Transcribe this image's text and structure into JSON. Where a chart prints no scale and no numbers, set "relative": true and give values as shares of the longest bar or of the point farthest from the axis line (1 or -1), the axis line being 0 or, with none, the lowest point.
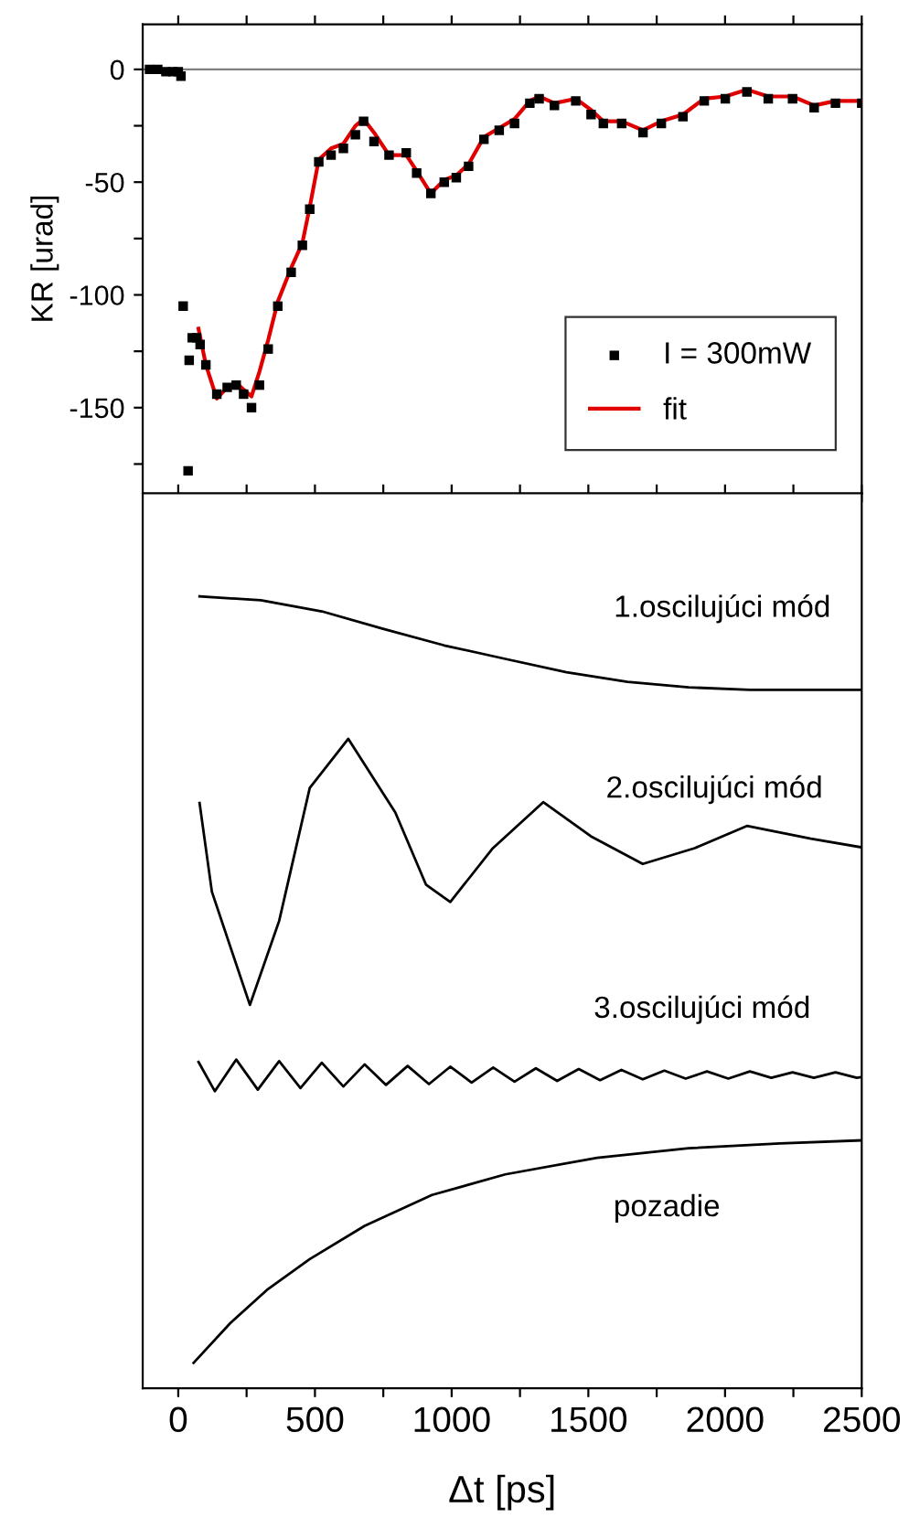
{
  "chart_data": [
    {
      "type": "scatter",
      "ylabel": "KR [urad]",
      "xlim": [
        -130,
        2500
      ],
      "ylim": [
        -188,
        20
      ],
      "xticks": [
        {
          "value": 0,
          "label": null
        },
        {
          "value": 250,
          "label": null
        },
        {
          "value": 500,
          "label": null
        },
        {
          "value": 750,
          "label": null
        },
        {
          "value": 1000,
          "label": null
        },
        {
          "value": 1250,
          "label": null
        },
        {
          "value": 1500,
          "label": null
        },
        {
          "value": 1750,
          "label": null
        },
        {
          "value": 2000,
          "label": null
        },
        {
          "value": 2250,
          "label": null
        },
        {
          "value": 2500,
          "label": null
        }
      ],
      "yticks": [
        {
          "value": -175,
          "label": null
        },
        -150,
        {
          "value": -125,
          "label": null
        },
        -100,
        {
          "value": -75,
          "label": null
        },
        -50,
        {
          "value": -25,
          "label": null
        },
        0
      ],
      "tick_labels": "y",
      "legend": "bottom right",
      "ref_lines": [
        {
          "axis": "y",
          "value": 0,
          "color": "#808080"
        }
      ],
      "series": [
        {
          "name": "I = 300mW",
          "type": "scatter",
          "marker": "square",
          "color": "#000000",
          "x": [
            -105,
            -75,
            -45,
            -20,
            0,
            10,
            18,
            36,
            40,
            51,
            67,
            80,
            101,
            141,
            179,
            212,
            239,
            268,
            297,
            329,
            364,
            413,
            454,
            481,
            514,
            559,
            604,
            648,
            678,
            716,
            771,
            834,
            872,
            924,
            973,
            1017,
            1062,
            1118,
            1174,
            1230,
            1286,
            1320,
            1376,
            1454,
            1510,
            1555,
            1622,
            1700,
            1767,
            1846,
            1924,
            2001,
            2080,
            2158,
            2247,
            2326,
            2404,
            2500
          ],
          "values": [
            0,
            0,
            -1,
            -1,
            -1,
            -3,
            -105,
            -178,
            -129,
            -119,
            -119,
            -122,
            -131,
            -144,
            -141,
            -140,
            -144,
            -150,
            -140,
            -124,
            -105,
            -90,
            -78,
            -62,
            -41,
            -38,
            -35,
            -29,
            -23,
            -32,
            -38,
            -37,
            -46,
            -55,
            -50,
            -48,
            -43,
            -31,
            -27,
            -24,
            -15,
            -13,
            -16,
            -14,
            -20,
            -24,
            -24,
            -28,
            -24,
            -21,
            -14,
            -13,
            -10,
            -13,
            -13,
            -17,
            -15,
            -15
          ]
        },
        {
          "name": "fit",
          "type": "line",
          "color": "#e00000",
          "x": [
            74,
            101,
            141,
            179,
            212,
            239,
            268,
            297,
            329,
            364,
            413,
            454,
            481,
            514,
            559,
            604,
            648,
            678,
            716,
            771,
            834,
            872,
            924,
            973,
            1017,
            1062,
            1118,
            1174,
            1230,
            1286,
            1320,
            1376,
            1454,
            1510,
            1555,
            1622,
            1700,
            1767,
            1846,
            1924,
            2001,
            2080,
            2158,
            2247,
            2326,
            2404,
            2500
          ],
          "values": [
            -115,
            -131,
            -146,
            -141,
            -139,
            -142,
            -145,
            -134,
            -120,
            -103,
            -88,
            -77,
            -61,
            -40,
            -35,
            -33,
            -25,
            -22,
            -28,
            -38,
            -38,
            -45,
            -55,
            -49,
            -47,
            -42,
            -30,
            -26,
            -22,
            -14,
            -12,
            -15,
            -13,
            -18,
            -23,
            -23,
            -27,
            -23,
            -20,
            -13,
            -12,
            -9,
            -12,
            -12,
            -16,
            -14,
            -14
          ]
        }
      ]
    },
    {
      "type": "line",
      "relative": true,
      "xlabel": "Δt [ps]",
      "xlim": [
        -130,
        2500
      ],
      "xticks": [
        0,
        {
          "value": 250,
          "label": null
        },
        500,
        {
          "value": 750,
          "label": null
        },
        1000,
        {
          "value": 1250,
          "label": null
        },
        1500,
        {
          "value": 1750,
          "label": null
        },
        2000,
        {
          "value": 2250,
          "label": null
        },
        2500
      ],
      "tick_labels": "x",
      "annotations": [
        "1.oscilujúci mód",
        "2.oscilujúci mód",
        "3.oscilujúci mód",
        "pozadie"
      ],
      "series": [
        {
          "color": "#000000",
          "x": [
            78,
            302,
            525,
            749,
            973,
            1196,
            1420,
            1643,
            1867,
            2091,
            2500
          ],
          "values": [
            1.0,
            0.995,
            0.981,
            0.959,
            0.938,
            0.921,
            0.904,
            0.892,
            0.885,
            0.882,
            0.882
          ]
        },
        {
          "color": "#000000",
          "x": [
            78,
            123,
            190,
            262,
            369,
            481,
            622,
            794,
            906,
            995,
            1151,
            1335,
            1509,
            1699,
            1889,
            2080,
            2314,
            2500
          ],
          "values": [
            0.739,
            0.627,
            0.558,
            0.484,
            0.59,
            0.758,
            0.82,
            0.727,
            0.636,
            0.614,
            0.682,
            0.74,
            0.697,
            0.662,
            0.682,
            0.71,
            0.694,
            0.683
          ]
        },
        {
          "color": "#000000",
          "x": [
            74,
            134,
            212,
            291,
            369,
            447,
            525,
            604,
            682,
            760,
            839,
            917,
            995,
            1073,
            1152,
            1230,
            1308,
            1386,
            1465,
            1543,
            1621,
            1699,
            1778,
            1856,
            1934,
            2012,
            2091,
            2169,
            2247,
            2325,
            2404,
            2482,
            2500
          ],
          "values": [
            0.412,
            0.375,
            0.415,
            0.377,
            0.413,
            0.379,
            0.411,
            0.381,
            0.409,
            0.383,
            0.407,
            0.384,
            0.406,
            0.386,
            0.405,
            0.387,
            0.404,
            0.388,
            0.403,
            0.389,
            0.402,
            0.39,
            0.401,
            0.391,
            0.4,
            0.391,
            0.4,
            0.392,
            0.399,
            0.392,
            0.399,
            0.392,
            0.393
          ]
        },
        {
          "color": "#000000",
          "x": [
            56,
            190,
            324,
            481,
            682,
            928,
            1196,
            1532,
            1867,
            2202,
            2500
          ],
          "values": [
            0.032,
            0.082,
            0.124,
            0.163,
            0.205,
            0.244,
            0.27,
            0.291,
            0.303,
            0.309,
            0.313
          ]
        }
      ]
    }
  ]
}
